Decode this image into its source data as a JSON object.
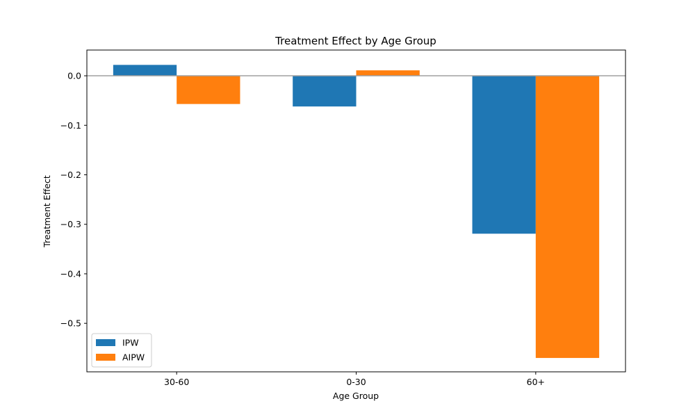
{
  "chart_data": {
    "type": "bar",
    "title": "Treatment Effect by Age Group",
    "xlabel": "Age Group",
    "ylabel": "Treatment Effect",
    "categories": [
      "30-60",
      "0-30",
      "60+"
    ],
    "series": [
      {
        "name": "IPW",
        "color": "#1f77b4",
        "values": [
          0.022,
          -0.062,
          -0.319
        ]
      },
      {
        "name": "AIPW",
        "color": "#ff7f0e",
        "values": [
          -0.057,
          0.011,
          -0.57
        ]
      }
    ],
    "ylim": [
      -0.598,
      0.052
    ],
    "yticks": [
      0.0,
      -0.1,
      -0.2,
      -0.3,
      -0.4,
      -0.5
    ],
    "ytick_labels": [
      "0.0",
      "−0.1",
      "−0.2",
      "−0.3",
      "−0.4",
      "−0.5"
    ],
    "zero_line": true,
    "zero_line_color": "#a0a0a0",
    "grid": false,
    "legend_position": "lower-left"
  }
}
